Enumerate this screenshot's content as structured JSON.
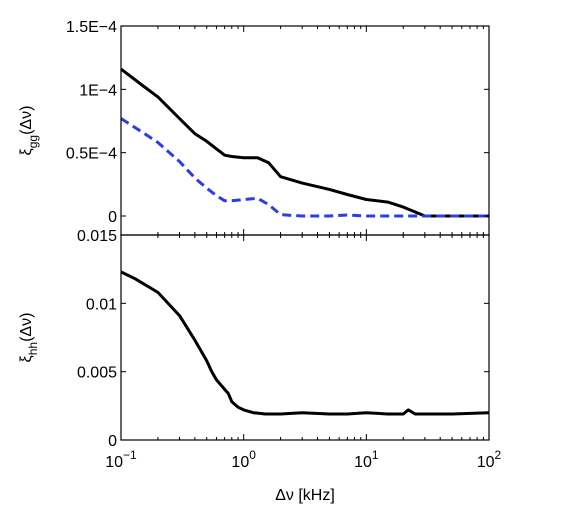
{
  "chart_data": [
    {
      "type": "line",
      "x_scale": "log",
      "xlim": [
        0.1,
        100
      ],
      "ylim": [
        -1.5e-05,
        0.00015
      ],
      "ylabel": {
        "symbol": "ξ",
        "sub": "gg",
        "arg": "(Δν)"
      },
      "yticks": [
        {
          "value": 0,
          "label": "0"
        },
        {
          "value": 5e-05,
          "label": "0.5E−4"
        },
        {
          "value": 0.0001,
          "label": "1E−4"
        },
        {
          "value": 0.00015,
          "label": "1.5E−4"
        }
      ],
      "series": [
        {
          "color": "#000000",
          "dash": "solid",
          "x": [
            0.1,
            0.15,
            0.2,
            0.3,
            0.4,
            0.5,
            0.6,
            0.7,
            0.8,
            1.0,
            1.3,
            1.6,
            2.0,
            3.0,
            5.0,
            7.0,
            10,
            15,
            20,
            30,
            50,
            100
          ],
          "y": [
            0.000116,
            0.000103,
            9.4e-05,
            7.7e-05,
            6.5e-05,
            5.9e-05,
            5.3e-05,
            4.8e-05,
            4.7e-05,
            4.6e-05,
            4.6e-05,
            4.2e-05,
            3.1e-05,
            2.6e-05,
            2.1e-05,
            1.7e-05,
            1.3e-05,
            1.1e-05,
            7e-06,
            0.0,
            0.0,
            0.0
          ]
        },
        {
          "color": "#2a3fe0",
          "dash": "dashed",
          "x": [
            0.1,
            0.15,
            0.2,
            0.3,
            0.4,
            0.5,
            0.6,
            0.7,
            0.8,
            1.0,
            1.3,
            1.6,
            2.0,
            3.0,
            5.0,
            7.0,
            10,
            20,
            30,
            50,
            100
          ],
          "y": [
            7.7e-05,
            6.6e-05,
            5.8e-05,
            4.3e-05,
            3e-05,
            2.2e-05,
            1.6e-05,
            1.2e-05,
            1.2e-05,
            1.3e-05,
            1.4e-05,
            9e-06,
            1e-06,
            0.0,
            0.0,
            8e-07,
            0.0,
            0.0,
            0.0,
            0.0,
            0.0
          ]
        }
      ]
    },
    {
      "type": "line",
      "x_scale": "log",
      "xlim": [
        0.1,
        100
      ],
      "ylim": [
        0,
        0.015
      ],
      "xlabel": "Δν [kHz]",
      "ylabel": {
        "symbol": "ξ",
        "sub": "hh",
        "arg": "(Δν)"
      },
      "yticks": [
        {
          "value": 0,
          "label": "0"
        },
        {
          "value": 0.005,
          "label": "0.005"
        },
        {
          "value": 0.01,
          "label": "0.01"
        },
        {
          "value": 0.015,
          "label": "0.015"
        }
      ],
      "xticks": [
        {
          "value": 0.1,
          "base": "10",
          "exp": "−1"
        },
        {
          "value": 1,
          "base": "10",
          "exp": "0"
        },
        {
          "value": 10,
          "base": "10",
          "exp": "1"
        },
        {
          "value": 100,
          "base": "10",
          "exp": "2"
        }
      ],
      "series": [
        {
          "color": "#000000",
          "dash": "solid",
          "x": [
            0.1,
            0.13,
            0.2,
            0.3,
            0.4,
            0.5,
            0.55,
            0.6,
            0.7,
            0.75,
            0.8,
            0.9,
            1.0,
            1.2,
            1.5,
            2.0,
            3,
            5,
            7,
            10,
            15,
            20,
            22,
            25,
            30,
            50,
            100
          ],
          "y": [
            0.0123,
            0.0118,
            0.0108,
            0.0091,
            0.0073,
            0.0058,
            0.005,
            0.0044,
            0.0037,
            0.0034,
            0.0028,
            0.0024,
            0.0022,
            0.002,
            0.0019,
            0.0019,
            0.002,
            0.0019,
            0.0019,
            0.002,
            0.0019,
            0.0019,
            0.0022,
            0.0019,
            0.0019,
            0.0019,
            0.002
          ]
        }
      ]
    }
  ]
}
